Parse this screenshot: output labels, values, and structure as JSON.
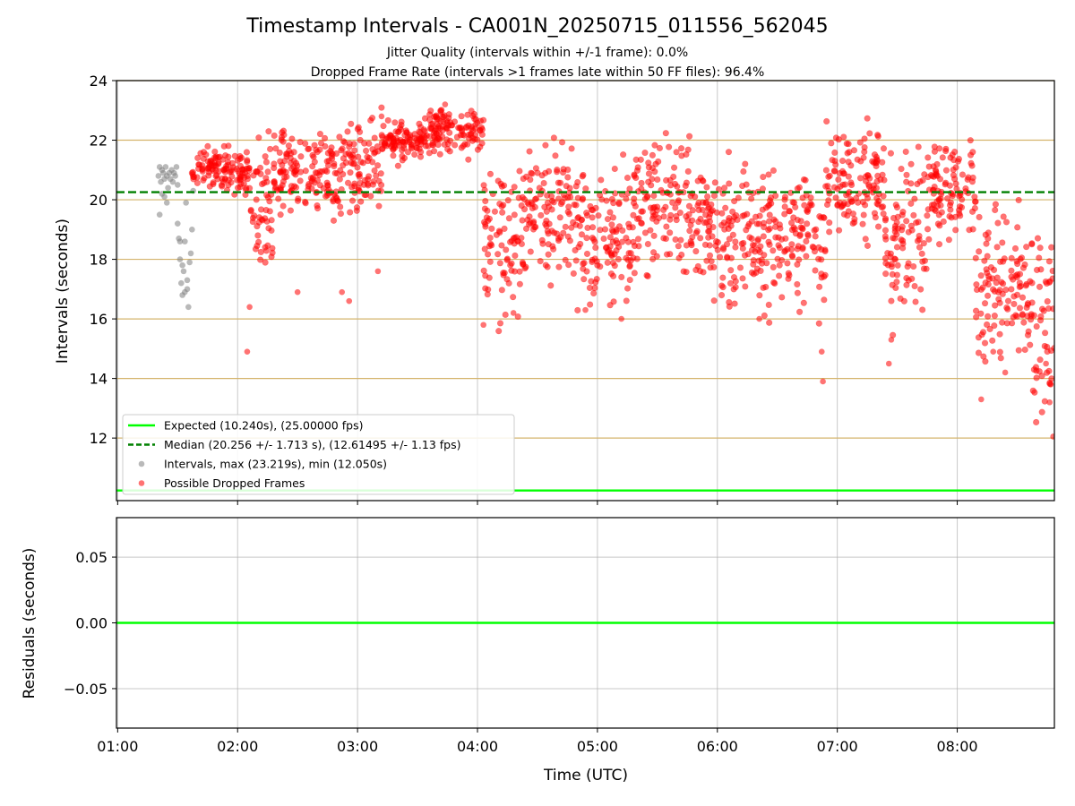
{
  "figure": {
    "title": "Timestamp Intervals - CA001N_20250715_011556_562045",
    "subtitle_1": "Jitter Quality (intervals within +/-1 frame): 0.0%",
    "subtitle_2": "Dropped Frame Rate (intervals >1 frames late within 50 FF files): 96.4%"
  },
  "chart_data": [
    {
      "type": "scatter",
      "ylabel": "Intervals (seconds)",
      "xlabel": "",
      "xlim_hours": [
        0.99,
        8.81
      ],
      "ylim": [
        9.9,
        24.0
      ],
      "y_ticks": [
        12,
        14,
        16,
        18,
        20,
        22,
        24
      ],
      "y_tick_labels": [
        "12",
        "14",
        "16",
        "18",
        "20",
        "22",
        "24"
      ],
      "x_ticks_hours": [
        1,
        2,
        3,
        4,
        5,
        6,
        7,
        8
      ],
      "grid": "horizontal",
      "grid_color": "#d4b46c",
      "vertical_grid_color": "#b0b0b0",
      "legend_placement": "lower-left",
      "expected": {
        "label": "Expected (10.240s), (25.00000 fps)",
        "y": 10.24,
        "color": "#00ff00"
      },
      "median": {
        "label": "Median (20.256 +/- 1.713 s), (12.61495 +/- 1.13 fps)",
        "y": 20.256,
        "color": "#008000"
      },
      "intervals": {
        "label": "Intervals, max (23.219s), min (12.050s)",
        "color": "#808080",
        "points": [
          [
            1.34,
            20.8
          ],
          [
            1.35,
            21.1
          ],
          [
            1.36,
            20.6
          ],
          [
            1.37,
            21.0
          ],
          [
            1.38,
            20.9
          ],
          [
            1.39,
            20.7
          ],
          [
            1.4,
            21.1
          ],
          [
            1.41,
            20.8
          ],
          [
            1.42,
            20.4
          ],
          [
            1.43,
            20.9
          ],
          [
            1.44,
            20.7
          ],
          [
            1.45,
            21.0
          ],
          [
            1.46,
            20.6
          ],
          [
            1.47,
            20.9
          ],
          [
            1.48,
            20.8
          ],
          [
            1.49,
            21.1
          ],
          [
            1.5,
            20.5
          ],
          [
            1.35,
            19.5
          ],
          [
            1.37,
            20.2
          ],
          [
            1.39,
            20.1
          ],
          [
            1.41,
            19.9
          ],
          [
            1.5,
            19.2
          ],
          [
            1.51,
            18.7
          ],
          [
            1.52,
            18.0
          ],
          [
            1.53,
            17.2
          ],
          [
            1.54,
            16.8
          ],
          [
            1.55,
            17.6
          ],
          [
            1.56,
            18.6
          ],
          [
            1.57,
            19.9
          ],
          [
            1.58,
            17.0
          ],
          [
            1.59,
            16.4
          ],
          [
            1.6,
            17.9
          ],
          [
            1.61,
            18.2
          ],
          [
            1.62,
            19.0
          ],
          [
            1.63,
            20.3
          ],
          [
            1.52,
            18.6
          ],
          [
            1.54,
            17.8
          ],
          [
            1.56,
            16.9
          ],
          [
            1.58,
            17.3
          ]
        ],
        "max": 23.219,
        "min": 12.05
      },
      "dropped": {
        "label": "Possible Dropped Frames",
        "color": "#ff0000",
        "segments": [
          {
            "t0": 1.62,
            "t1": 2.1,
            "base": 21.0,
            "spread": 0.6
          },
          {
            "t0": 2.1,
            "t1": 2.3,
            "base": 19.4,
            "spread": 1.8
          },
          {
            "t0": 2.3,
            "t1": 2.6,
            "base": 21.0,
            "spread": 1.0
          },
          {
            "t0": 2.6,
            "t1": 2.9,
            "base": 21.0,
            "spread": 1.2
          },
          {
            "t0": 2.9,
            "t1": 3.2,
            "base": 21.0,
            "spread": 1.3
          },
          {
            "t0": 3.2,
            "t1": 3.6,
            "base": 22.0,
            "spread": 0.5
          },
          {
            "t0": 3.6,
            "t1": 4.05,
            "base": 22.3,
            "spread": 0.6
          },
          {
            "t0": 4.05,
            "t1": 4.4,
            "base": 18.8,
            "spread": 2.0
          },
          {
            "t0": 4.4,
            "t1": 4.8,
            "base": 19.8,
            "spread": 1.6
          },
          {
            "t0": 4.8,
            "t1": 5.3,
            "base": 18.7,
            "spread": 1.8
          },
          {
            "t0": 5.3,
            "t1": 5.8,
            "base": 19.8,
            "spread": 1.8
          },
          {
            "t0": 5.8,
            "t1": 6.3,
            "base": 18.8,
            "spread": 1.8
          },
          {
            "t0": 6.3,
            "t1": 6.9,
            "base": 18.7,
            "spread": 1.8
          },
          {
            "t0": 6.9,
            "t1": 7.4,
            "base": 20.6,
            "spread": 1.4
          },
          {
            "t0": 7.4,
            "t1": 7.75,
            "base": 18.6,
            "spread": 1.9
          },
          {
            "t0": 7.75,
            "t1": 8.15,
            "base": 20.4,
            "spread": 1.2
          },
          {
            "t0": 8.15,
            "t1": 8.55,
            "base": 17.2,
            "spread": 2.0
          },
          {
            "t0": 8.55,
            "t1": 8.81,
            "base": 15.8,
            "spread": 2.2
          }
        ],
        "outliers": [
          [
            2.08,
            14.9
          ],
          [
            2.1,
            16.4
          ],
          [
            2.5,
            16.9
          ],
          [
            2.87,
            16.9
          ],
          [
            2.93,
            16.6
          ],
          [
            3.17,
            17.6
          ],
          [
            3.2,
            22.8
          ],
          [
            3.73,
            23.2
          ],
          [
            4.05,
            15.8
          ],
          [
            4.3,
            16.2
          ],
          [
            4.9,
            16.3
          ],
          [
            5.2,
            16.0
          ],
          [
            6.35,
            16.0
          ],
          [
            6.88,
            13.9
          ],
          [
            6.87,
            14.9
          ],
          [
            7.43,
            14.5
          ],
          [
            7.45,
            15.3
          ],
          [
            8.2,
            13.3
          ],
          [
            8.3,
            14.9
          ],
          [
            8.4,
            14.2
          ],
          [
            8.77,
            13.2
          ],
          [
            8.8,
            12.05
          ],
          [
            8.78,
            13.8
          ],
          [
            8.74,
            14.5
          ]
        ]
      }
    },
    {
      "type": "line",
      "ylabel": "Residuals (seconds)",
      "xlabel": "Time (UTC)",
      "ylim": [
        -0.08,
        0.08
      ],
      "y_ticks": [
        -0.05,
        0.0,
        0.05
      ],
      "y_tick_labels": [
        "−0.05",
        "0.00",
        "0.05"
      ],
      "x_ticks_hours": [
        1,
        2,
        3,
        4,
        5,
        6,
        7,
        8
      ],
      "x_tick_labels": [
        "01:00",
        "02:00",
        "03:00",
        "04:00",
        "05:00",
        "06:00",
        "07:00",
        "08:00"
      ],
      "residual_line": {
        "y": 0.0,
        "color": "#00ff00"
      },
      "grid": "both",
      "grid_color": "#b0b0b0"
    }
  ]
}
